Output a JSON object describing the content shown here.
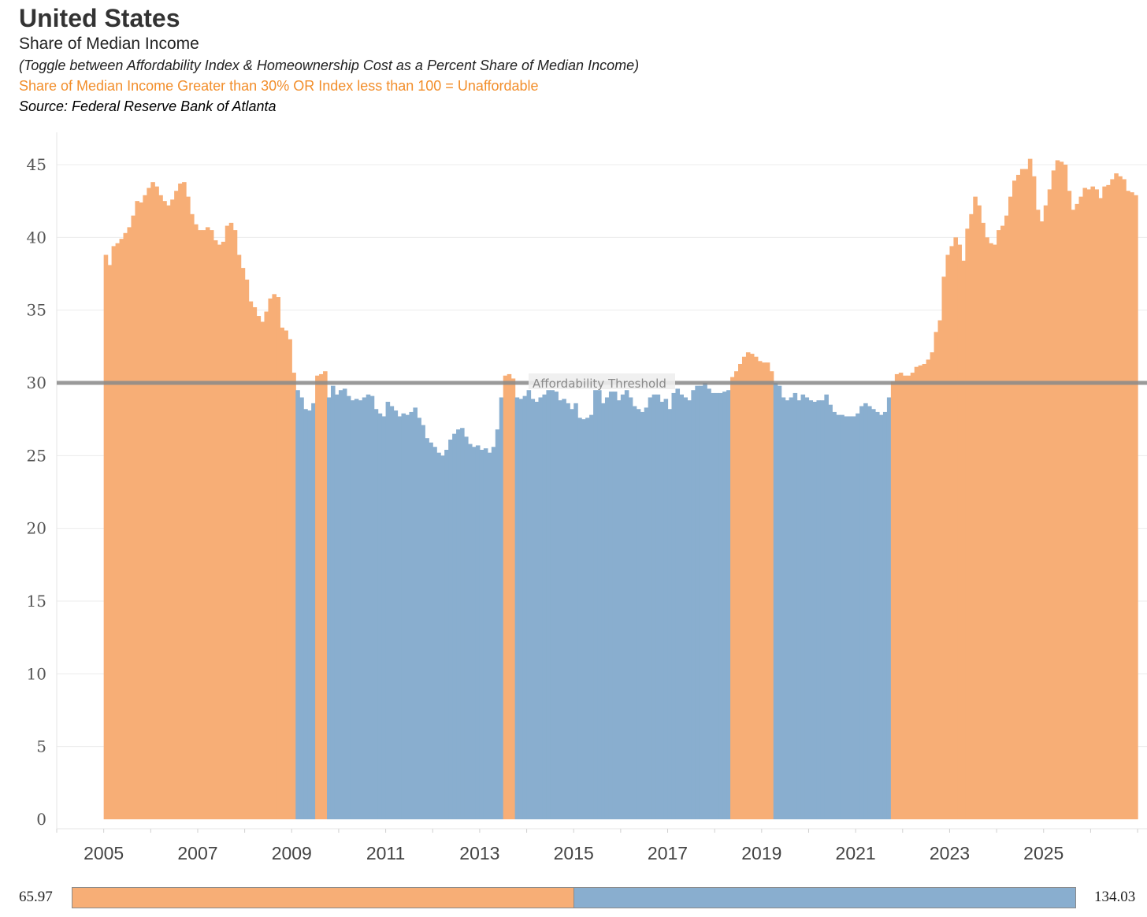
{
  "header": {
    "title": "United States",
    "subtitle": "Share of Median Income",
    "toggle_note": "(Toggle between Affordability Index & Homeownership Cost as a Percent Share of Median Income)",
    "rule": "Share of Median Income Greater than 30% OR Index less than 100  = Unaffordable",
    "source": "Source: Federal Reserve Bank of Atlanta"
  },
  "legend": {
    "min_label": "65.97",
    "max_label": "134.03",
    "unaffordable_color": "#f7ae76",
    "affordable_color": "#89aecf"
  },
  "chart_data": {
    "type": "bar",
    "title": "Share of Median Income",
    "xlabel": "",
    "ylabel": "",
    "ylim": [
      0,
      47
    ],
    "yticks": [
      0,
      5,
      10,
      15,
      20,
      25,
      30,
      35,
      40,
      45
    ],
    "xticks": [
      "2005",
      "2007",
      "2009",
      "2011",
      "2013",
      "2015",
      "2017",
      "2019",
      "2021",
      "2023",
      "2025"
    ],
    "x_range": [
      2004,
      2027.2
    ],
    "threshold": {
      "value": 30,
      "label": "Affordability Threshold"
    },
    "series": [
      {
        "name": "Share of Median Income (%)",
        "frequency": "monthly",
        "start": "2005-01",
        "unaffordable_above": 30,
        "values": [
          38.8,
          38.1,
          39.4,
          39.6,
          39.9,
          40.3,
          40.7,
          41.5,
          42.5,
          42.4,
          42.9,
          43.4,
          43.8,
          43.5,
          42.9,
          42.5,
          42.2,
          42.6,
          43.2,
          43.7,
          43.8,
          42.8,
          41.6,
          40.9,
          40.5,
          40.5,
          40.7,
          40.5,
          39.8,
          39.5,
          39.7,
          40.8,
          41.0,
          40.5,
          38.8,
          37.9,
          37.1,
          35.6,
          35.2,
          34.6,
          34.2,
          34.9,
          35.8,
          36.1,
          35.9,
          33.8,
          33.6,
          33.0,
          30.7,
          29.5,
          29.0,
          28.2,
          28.1,
          28.6,
          30.5,
          30.6,
          30.8,
          29.0,
          29.8,
          29.2,
          29.5,
          29.6,
          29.1,
          28.8,
          28.9,
          28.8,
          29.0,
          29.2,
          29.1,
          28.2,
          27.9,
          27.7,
          28.7,
          28.4,
          28.1,
          27.7,
          27.9,
          27.8,
          28.0,
          28.3,
          27.6,
          27.1,
          26.2,
          25.9,
          25.6,
          25.2,
          25.0,
          25.4,
          26.1,
          26.5,
          26.8,
          26.9,
          26.3,
          25.8,
          25.6,
          25.7,
          25.4,
          25.5,
          25.2,
          25.6,
          26.8,
          29.0,
          30.5,
          30.6,
          30.3,
          29.0,
          28.9,
          29.1,
          29.5,
          28.9,
          28.7,
          29.0,
          29.2,
          29.5,
          29.5,
          29.4,
          28.8,
          28.9,
          28.6,
          28.2,
          28.6,
          27.6,
          27.5,
          27.6,
          27.8,
          29.5,
          29.5,
          28.6,
          29.0,
          29.4,
          29.4,
          28.8,
          29.2,
          29.5,
          29.0,
          28.4,
          28.2,
          28.0,
          28.3,
          29.0,
          29.2,
          29.2,
          28.7,
          28.9,
          28.2,
          29.3,
          29.6,
          29.2,
          29.0,
          28.8,
          29.5,
          29.8,
          29.8,
          30.0,
          29.6,
          29.3,
          29.3,
          29.3,
          29.4,
          29.5,
          30.4,
          30.8,
          31.3,
          31.8,
          32.1,
          32.0,
          31.8,
          31.5,
          31.4,
          31.4,
          30.8,
          30.0,
          29.8,
          29.0,
          28.8,
          29.0,
          29.3,
          28.8,
          29.2,
          29.0,
          28.8,
          28.7,
          28.8,
          28.8,
          29.2,
          28.5,
          28.0,
          27.8,
          27.8,
          27.7,
          27.7,
          27.7,
          27.9,
          28.4,
          28.6,
          28.4,
          28.2,
          28.0,
          27.8,
          28.0,
          29.0,
          30.1,
          30.6,
          30.7,
          30.5,
          30.5,
          30.7,
          31.1,
          31.2,
          31.3,
          31.6,
          32.1,
          33.5,
          34.3,
          37.3,
          38.8,
          39.4,
          40.0,
          39.5,
          38.4,
          40.6,
          41.6,
          42.8,
          42.2,
          41.0,
          40.0,
          39.6,
          39.5,
          40.5,
          40.8,
          41.5,
          42.8,
          43.9,
          44.3,
          44.7,
          44.7,
          45.4,
          44.2,
          41.9,
          41.1,
          42.2,
          43.3,
          44.6,
          45.3,
          45.2,
          45.0,
          43.2,
          41.9,
          42.3,
          42.8,
          43.4,
          43.3,
          43.5,
          43.3,
          42.7,
          43.5,
          43.6,
          44.0,
          44.4,
          44.2,
          44.0,
          43.2,
          43.1,
          42.9
        ]
      }
    ]
  }
}
